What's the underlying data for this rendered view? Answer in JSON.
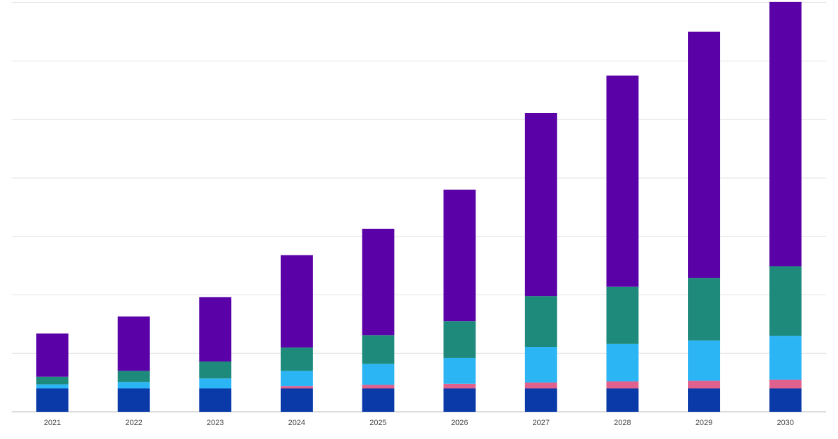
{
  "chart_data": {
    "type": "stacked_bar",
    "categories": [
      "2021",
      "2022",
      "2023",
      "2024",
      "2025",
      "2026",
      "2027",
      "2028",
      "2029",
      "2030"
    ],
    "series": [
      {
        "color": "#0a3aa8",
        "values": [
          0.4,
          0.4,
          0.4,
          0.4,
          0.4,
          0.4,
          0.4,
          0.4,
          0.4,
          0.4
        ]
      },
      {
        "color": "#e0608e",
        "values": [
          0,
          0,
          0,
          0.04,
          0.06,
          0.08,
          0.1,
          0.12,
          0.13,
          0.15
        ]
      },
      {
        "color": "#2cb5f5",
        "values": [
          0.07,
          0.11,
          0.17,
          0.26,
          0.36,
          0.44,
          0.61,
          0.64,
          0.69,
          0.75
        ]
      },
      {
        "color": "#1d8a7c",
        "values": [
          0.13,
          0.19,
          0.29,
          0.4,
          0.49,
          0.63,
          0.87,
          0.98,
          1.07,
          1.19
        ]
      },
      {
        "color": "#5a02a8",
        "values": [
          0.74,
          0.93,
          1.1,
          1.58,
          1.82,
          2.25,
          3.13,
          3.61,
          4.21,
          4.52
        ]
      }
    ],
    "ylim": [
      0,
      7.02
    ],
    "yticks": [
      0,
      1,
      2,
      3,
      4,
      5,
      6,
      7
    ],
    "grid": true
  }
}
